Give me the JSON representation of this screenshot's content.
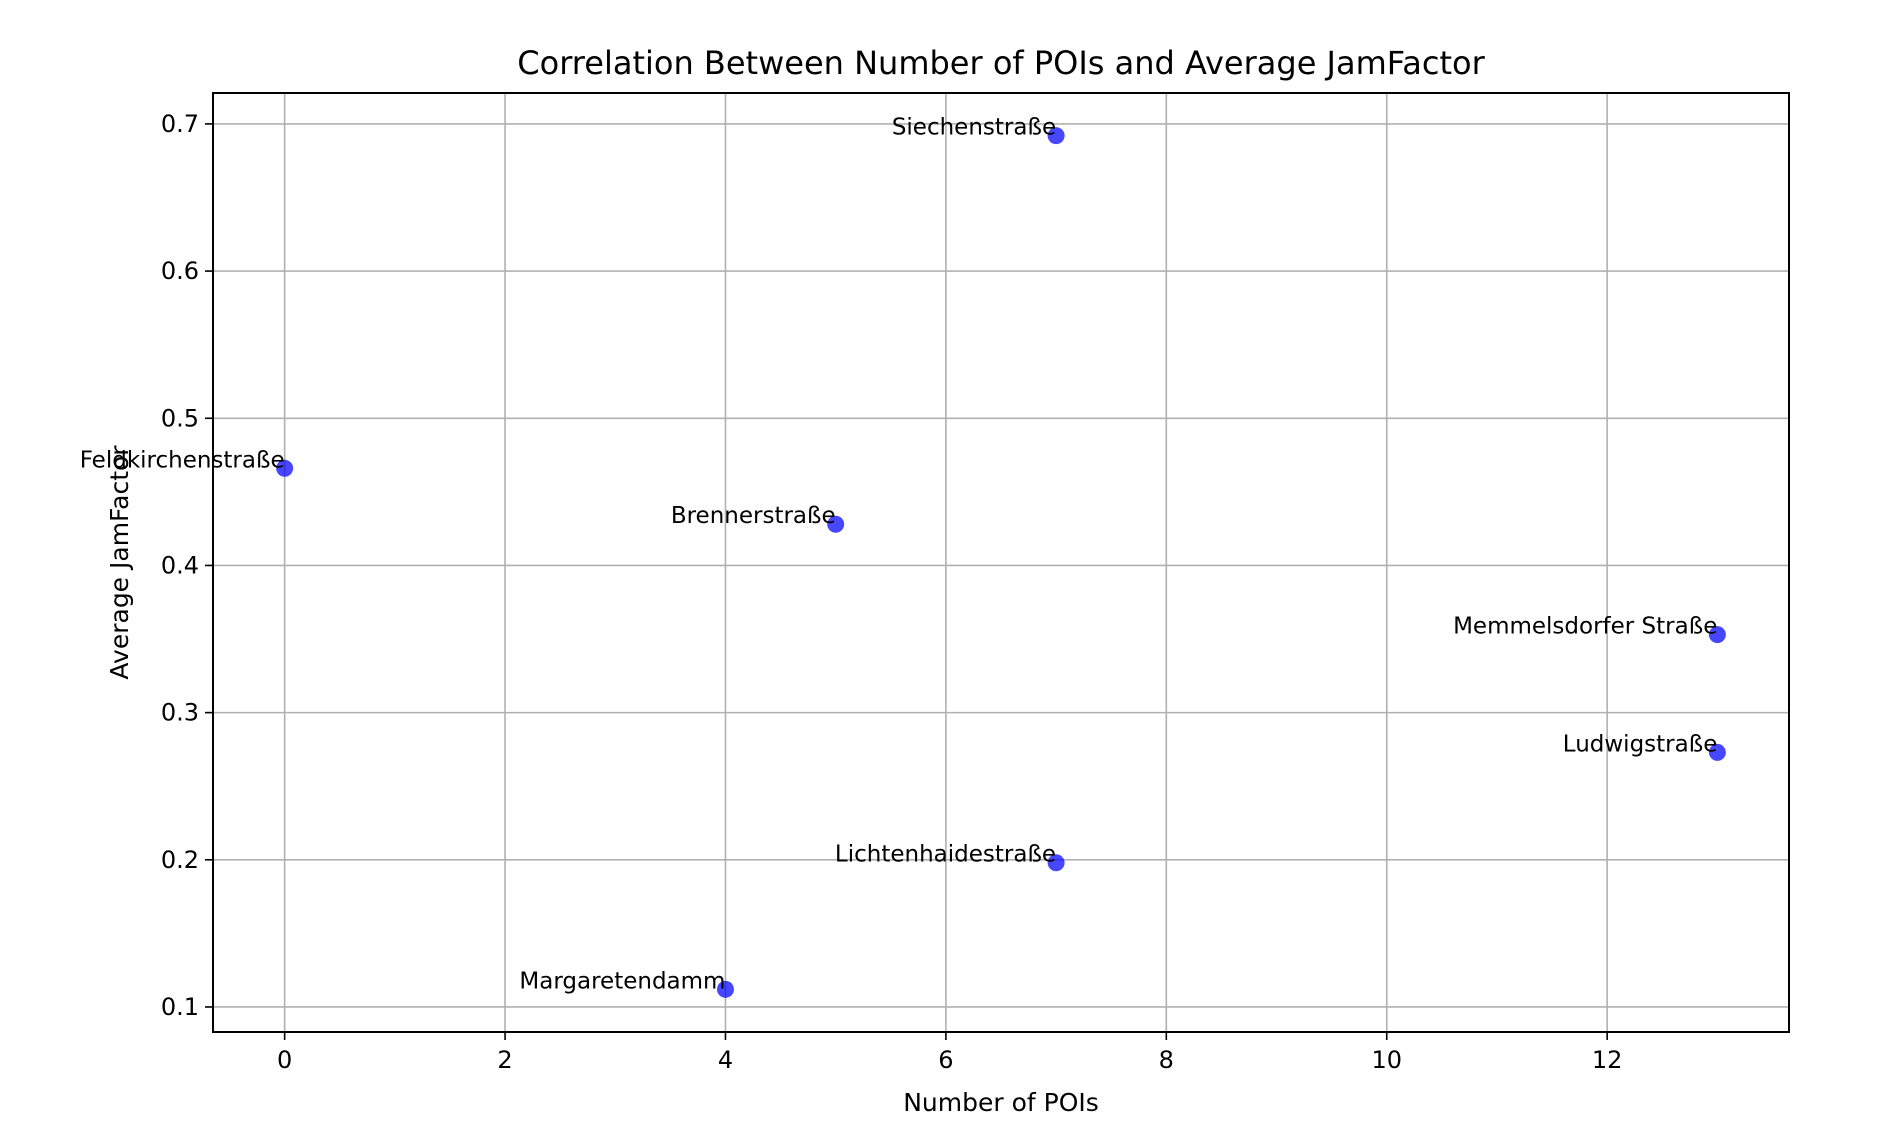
{
  "chart_data": {
    "type": "scatter",
    "title": "Correlation Between Number of POIs and Average JamFactor",
    "xlabel": "Number of POIs",
    "ylabel": "Average JamFactor",
    "xlim": [
      -0.65,
      13.65
    ],
    "ylim": [
      0.083,
      0.721
    ],
    "xticks": [
      0,
      2,
      4,
      6,
      8,
      10,
      12
    ],
    "yticks": [
      0.1,
      0.2,
      0.3,
      0.4,
      0.5,
      0.6,
      0.7
    ],
    "grid": true,
    "point_color": "#0000ff",
    "points": [
      {
        "label": "Siechenstraße",
        "x": 7,
        "y": 0.692
      },
      {
        "label": "Feldkirchenstraße",
        "x": 0,
        "y": 0.466
      },
      {
        "label": "Brennerstraße",
        "x": 5,
        "y": 0.428
      },
      {
        "label": "Memmelsdorfer Straße",
        "x": 13,
        "y": 0.353
      },
      {
        "label": "Ludwigstraße",
        "x": 13,
        "y": 0.273
      },
      {
        "label": "Lichtenhaidestraße",
        "x": 7,
        "y": 0.198
      },
      {
        "label": "Margaretendamm",
        "x": 4,
        "y": 0.112
      }
    ]
  }
}
